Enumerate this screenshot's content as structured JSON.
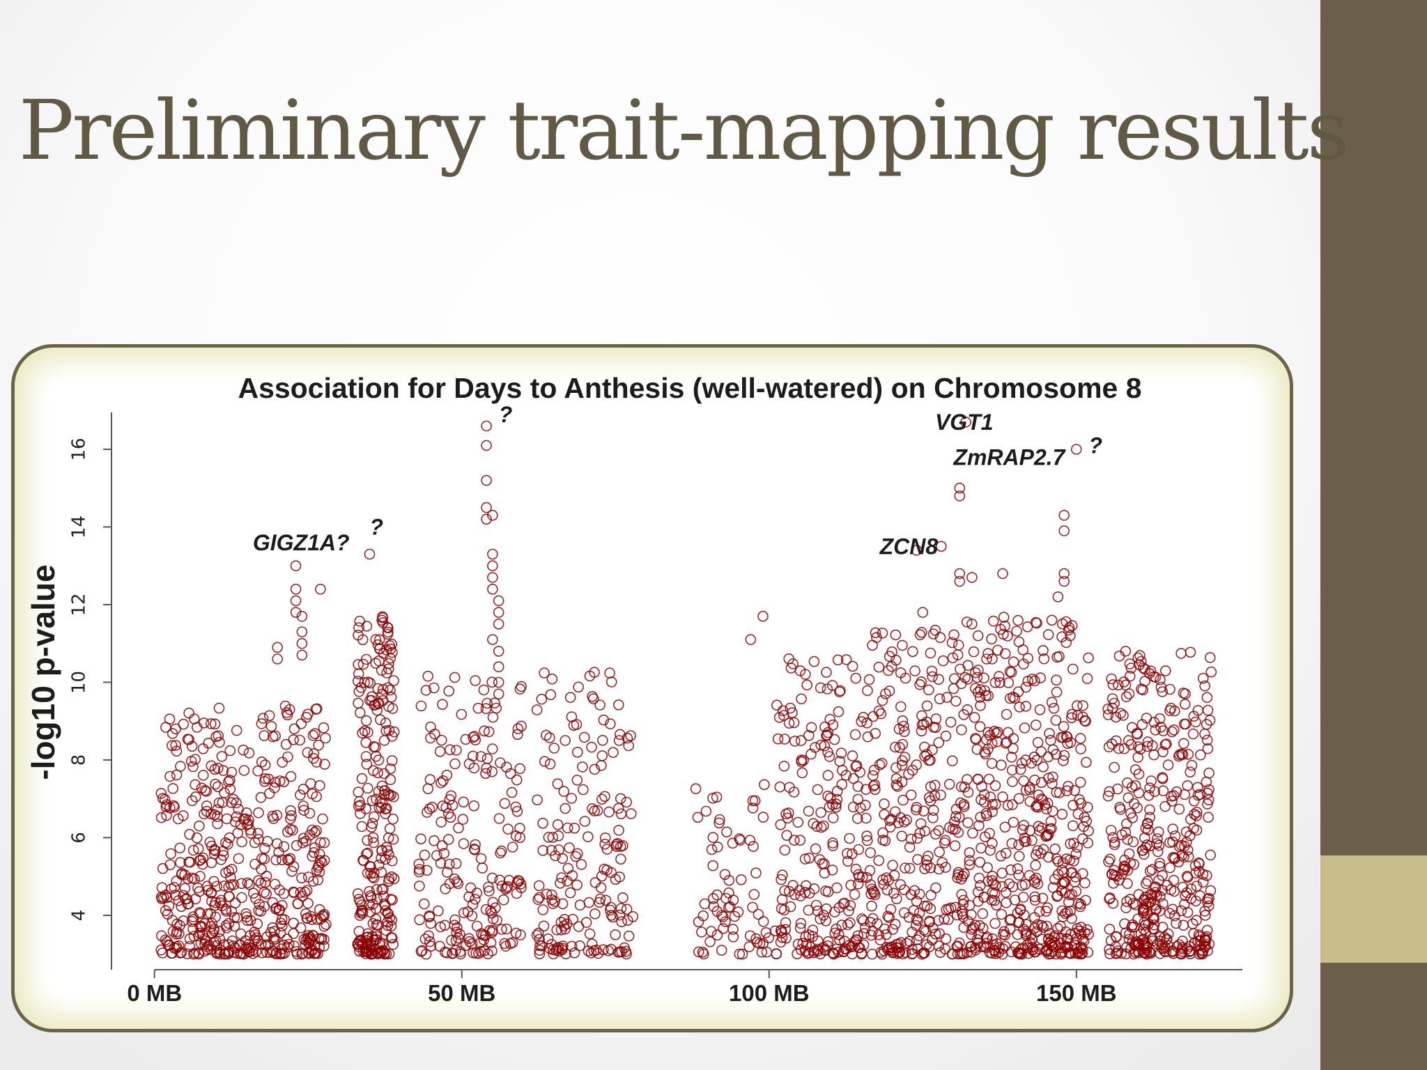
{
  "slide": {
    "title": "Preliminary trait-mapping results"
  },
  "colors": {
    "title": "#615943",
    "sidebar": "#6b5f4a",
    "sidebar_accent": "#c7bd8b",
    "frame_border": "#6b6448",
    "points": "#8b0000"
  },
  "chart_data": {
    "type": "scatter",
    "title": "Association for Days to Anthesis (well-watered) on Chromosome 8",
    "xlabel": "",
    "ylabel": "-log10 p-value",
    "xlim": [
      -7,
      177
    ],
    "ylim": [
      2.6,
      16.95
    ],
    "x_ticks": [
      {
        "value": 0,
        "label": "0 MB"
      },
      {
        "value": 50,
        "label": "50 MB"
      },
      {
        "value": 100,
        "label": "100 MB"
      },
      {
        "value": 150,
        "label": "150 MB"
      }
    ],
    "y_ticks": [
      4,
      6,
      8,
      10,
      12,
      14,
      16
    ],
    "grid": false,
    "marker": "open-circle",
    "clusters": [
      {
        "x_range": [
          1,
          28
        ],
        "y_range": [
          3,
          9.4
        ],
        "count": 520
      },
      {
        "x_range": [
          33,
          39
        ],
        "y_range": [
          3,
          11.7
        ],
        "count": 240
      },
      {
        "x_range": [
          43,
          60
        ],
        "y_range": [
          3,
          10.2
        ],
        "count": 200
      },
      {
        "x_range": [
          62,
          78
        ],
        "y_range": [
          3,
          10.3
        ],
        "count": 180
      },
      {
        "x_range": [
          88,
          100
        ],
        "y_range": [
          3,
          7.4
        ],
        "count": 70
      },
      {
        "x_range": [
          101,
          116
        ],
        "y_range": [
          3,
          10.7
        ],
        "count": 230
      },
      {
        "x_range": [
          116,
          134
        ],
        "y_range": [
          3,
          11.6
        ],
        "count": 330
      },
      {
        "x_range": [
          134,
          152
        ],
        "y_range": [
          3,
          11.7
        ],
        "count": 440
      },
      {
        "x_range": [
          155,
          172
        ],
        "y_range": [
          3,
          10.8
        ],
        "count": 420
      }
    ],
    "points": [
      [
        20,
        10.9
      ],
      [
        20,
        10.6
      ],
      [
        22,
        9.3
      ],
      [
        23,
        13.0
      ],
      [
        23,
        12.4
      ],
      [
        23,
        12.1
      ],
      [
        23,
        11.8
      ],
      [
        24,
        11.7
      ],
      [
        24,
        11.3
      ],
      [
        24,
        11.0
      ],
      [
        24,
        10.7
      ],
      [
        27,
        12.4
      ],
      [
        35,
        13.3
      ],
      [
        36,
        11.1
      ],
      [
        37,
        11.6
      ],
      [
        38,
        11.4
      ],
      [
        54,
        16.6
      ],
      [
        54,
        16.1
      ],
      [
        54,
        15.2
      ],
      [
        54,
        14.5
      ],
      [
        54,
        14.2
      ],
      [
        55,
        13.3
      ],
      [
        55,
        13.0
      ],
      [
        55,
        12.7
      ],
      [
        55,
        12.4
      ],
      [
        56,
        12.1
      ],
      [
        56,
        11.8
      ],
      [
        56,
        11.5
      ],
      [
        55,
        11.1
      ],
      [
        56,
        10.8
      ],
      [
        56,
        10.4
      ],
      [
        56,
        10.0
      ],
      [
        56,
        9.7
      ],
      [
        55,
        14.3
      ],
      [
        97,
        11.1
      ],
      [
        99,
        11.7
      ],
      [
        124,
        13.4
      ],
      [
        128,
        13.5
      ],
      [
        132,
        16.7
      ],
      [
        131,
        15.0
      ],
      [
        131,
        14.8
      ],
      [
        131,
        12.8
      ],
      [
        131,
        12.6
      ],
      [
        133,
        12.7
      ],
      [
        138,
        12.8
      ],
      [
        125,
        11.8
      ],
      [
        133,
        11.5
      ],
      [
        134,
        11.2
      ],
      [
        150,
        16.0
      ],
      [
        148,
        14.3
      ],
      [
        148,
        13.9
      ],
      [
        148,
        12.8
      ],
      [
        148,
        12.6
      ],
      [
        147,
        12.2
      ],
      [
        146,
        11.6
      ],
      [
        149,
        11.2
      ],
      [
        158,
        10.8
      ]
    ],
    "annotations": [
      {
        "label": "GIGZ1A?",
        "x": 16,
        "y": 13.4
      },
      {
        "label": "?",
        "x": 35,
        "y": 13.8
      },
      {
        "label": "?",
        "x": 56,
        "y": 16.7
      },
      {
        "label": "VGT1",
        "x": 127,
        "y": 16.5
      },
      {
        "label": "ZmRAP2.7",
        "x": 130,
        "y": 15.6
      },
      {
        "label": "ZCN8",
        "x": 118,
        "y": 13.3
      },
      {
        "label": "?",
        "x": 152,
        "y": 15.9
      }
    ]
  }
}
